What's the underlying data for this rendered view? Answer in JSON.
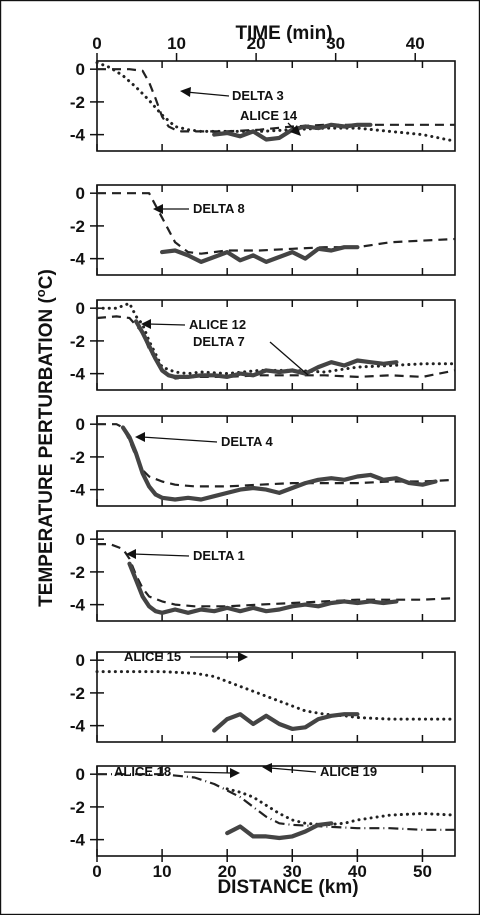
{
  "chart_data": {
    "type": "line",
    "top_axis": {
      "label": "TIME (min)",
      "ticks": [
        0,
        10,
        20,
        30,
        40
      ],
      "range": [
        0,
        45
      ]
    },
    "bottom_axis": {
      "label": "DISTANCE (km)",
      "ticks": [
        0,
        10,
        20,
        30,
        40,
        50
      ],
      "range": [
        0,
        55
      ]
    },
    "ylabel": "TEMPERATURE PERTURBATION (°C)",
    "ylabel_parts": {
      "before": "TEMPERATURE PERTURBATION (",
      "sup": "o",
      "after": "C)"
    },
    "ylim": [
      -5,
      0.5
    ],
    "yticks": [
      0,
      -2,
      -4
    ],
    "ytick_labels": [
      "0",
      "-2",
      "-4"
    ],
    "panels": [
      {
        "series": [
          {
            "name": "DELTA 3",
            "style": "dashed",
            "x": [
              0,
              5,
              7,
              8,
              9,
              10,
              11,
              12,
              13,
              15,
              20,
              25,
              30,
              35,
              40,
              45,
              50,
              55
            ],
            "y": [
              0,
              0,
              -0.1,
              -0.8,
              -1.8,
              -2.9,
              -3.5,
              -3.7,
              -3.8,
              -3.8,
              -3.8,
              -3.7,
              -3.5,
              -3.4,
              -3.4,
              -3.4,
              -3.4,
              -3.4
            ]
          },
          {
            "name": "",
            "style": "dotted",
            "x": [
              0,
              2,
              4,
              6,
              8,
              10,
              12,
              14,
              16,
              20,
              25,
              30,
              35,
              40,
              45,
              50,
              55
            ],
            "y": [
              0.4,
              0.1,
              -0.4,
              -1.1,
              -1.9,
              -2.8,
              -3.5,
              -3.7,
              -3.8,
              -3.8,
              -3.8,
              -3.7,
              -3.6,
              -3.6,
              -3.8,
              -4.0,
              -4.4
            ]
          },
          {
            "name": "ALICE 14",
            "style": "solid",
            "x": [
              18,
              20,
              22,
              24,
              26,
              28,
              30,
              32,
              34,
              36,
              38,
              40,
              42
            ],
            "y": [
              -4.0,
              -3.9,
              -4.1,
              -3.8,
              -4.3,
              -4.2,
              -3.7,
              -3.5,
              -3.6,
              -3.4,
              -3.5,
              -3.4,
              -3.4
            ]
          }
        ],
        "labels": [
          "DELTA 3",
          "ALICE 14"
        ]
      },
      {
        "series": [
          {
            "name": "DELTA 8",
            "style": "dashed",
            "x": [
              0,
              6,
              8,
              10,
              12,
              14,
              16,
              20,
              25,
              30,
              35,
              40,
              45,
              50,
              55
            ],
            "y": [
              0,
              0,
              0,
              -1.5,
              -3.0,
              -3.6,
              -3.7,
              -3.5,
              -3.5,
              -3.4,
              -3.3,
              -3.3,
              -3.0,
              -2.9,
              -2.8
            ]
          },
          {
            "name": "",
            "style": "solid",
            "x": [
              10,
              12,
              14,
              16,
              18,
              20,
              22,
              24,
              26,
              28,
              30,
              32,
              34,
              36,
              38,
              40
            ],
            "y": [
              -3.6,
              -3.5,
              -3.8,
              -4.2,
              -3.9,
              -3.6,
              -4.1,
              -3.8,
              -4.2,
              -3.9,
              -3.6,
              -4.0,
              -3.4,
              -3.5,
              -3.3,
              -3.3
            ]
          }
        ],
        "labels": [
          "DELTA 8"
        ]
      },
      {
        "series": [
          {
            "name": "",
            "style": "dotted",
            "x": [
              0,
              3,
              5,
              6,
              7,
              8,
              10,
              12,
              14,
              16,
              20,
              25,
              30,
              35,
              40,
              45,
              50,
              55
            ],
            "y": [
              0,
              0,
              0.3,
              -0.5,
              -1.0,
              -2.0,
              -3.6,
              -3.9,
              -4.0,
              -3.9,
              -4.0,
              -3.8,
              -3.8,
              -3.9,
              -3.6,
              -3.5,
              -3.4,
              -3.4
            ]
          },
          {
            "name": "DELTA 7",
            "style": "dashed",
            "x": [
              0,
              3,
              5,
              7,
              8,
              10,
              12,
              15,
              20,
              25,
              30,
              35,
              40,
              45,
              50,
              55
            ],
            "y": [
              -0.6,
              -0.5,
              -0.6,
              -1.5,
              -2.5,
              -3.8,
              -4.3,
              -4.2,
              -4.2,
              -4.1,
              -4.1,
              -4.1,
              -4.2,
              -4.1,
              -4.2,
              -3.8
            ]
          },
          {
            "name": "ALICE 12",
            "style": "solid",
            "x": [
              6,
              7,
              8,
              9,
              10,
              11,
              12,
              14,
              16,
              18,
              20,
              22,
              24,
              26,
              28,
              30,
              32,
              34,
              36,
              38,
              40,
              42,
              44,
              46
            ],
            "y": [
              -0.8,
              -1.5,
              -2.3,
              -3.1,
              -3.8,
              -4.1,
              -4.2,
              -4.2,
              -4.1,
              -4.1,
              -4.2,
              -4.0,
              -4.1,
              -3.8,
              -3.9,
              -3.8,
              -4.0,
              -3.6,
              -3.3,
              -3.5,
              -3.2,
              -3.3,
              -3.4,
              -3.3
            ]
          }
        ],
        "labels": [
          "ALICE 12",
          "DELTA 7"
        ]
      },
      {
        "series": [
          {
            "name": "DELTA 4",
            "style": "dashed",
            "x": [
              0,
              3,
              4,
              5,
              6,
              7,
              8,
              10,
              12,
              15,
              20,
              25,
              30,
              35,
              40,
              45,
              50,
              55
            ],
            "y": [
              0,
              0,
              -0.2,
              -1.0,
              -2.0,
              -2.8,
              -3.2,
              -3.5,
              -3.7,
              -3.8,
              -3.8,
              -3.7,
              -3.6,
              -3.6,
              -3.6,
              -3.5,
              -3.5,
              -3.4
            ]
          },
          {
            "name": "",
            "style": "solid",
            "x": [
              4,
              5,
              6,
              7,
              8,
              9,
              10,
              12,
              14,
              16,
              18,
              20,
              22,
              24,
              26,
              28,
              30,
              32,
              34,
              36,
              38,
              40,
              42,
              44,
              46,
              48,
              50,
              52
            ],
            "y": [
              -0.2,
              -0.8,
              -1.8,
              -3.0,
              -3.8,
              -4.3,
              -4.5,
              -4.6,
              -4.5,
              -4.6,
              -4.4,
              -4.2,
              -4.0,
              -3.9,
              -4.0,
              -4.2,
              -3.9,
              -3.6,
              -3.4,
              -3.3,
              -3.4,
              -3.2,
              -3.1,
              -3.4,
              -3.3,
              -3.6,
              -3.7,
              -3.5
            ]
          }
        ],
        "labels": [
          "DELTA 4"
        ]
      },
      {
        "series": [
          {
            "name": "DELTA 1",
            "style": "dashed",
            "x": [
              0,
              2,
              4,
              5,
              6,
              7,
              8,
              10,
              12,
              15,
              20,
              25,
              30,
              35,
              40,
              45,
              50,
              55
            ],
            "y": [
              -0.3,
              -0.3,
              -0.6,
              -1.2,
              -2.2,
              -3.0,
              -3.5,
              -3.8,
              -4.0,
              -4.1,
              -4.1,
              -4.0,
              -3.9,
              -3.8,
              -3.7,
              -3.7,
              -3.7,
              -3.6
            ]
          },
          {
            "name": "",
            "style": "solid",
            "x": [
              5,
              6,
              7,
              8,
              9,
              10,
              12,
              14,
              16,
              18,
              20,
              22,
              24,
              26,
              28,
              30,
              32,
              34,
              36,
              38,
              40,
              42,
              44,
              46
            ],
            "y": [
              -1.5,
              -2.5,
              -3.5,
              -4.1,
              -4.4,
              -4.5,
              -4.3,
              -4.5,
              -4.3,
              -4.4,
              -4.2,
              -4.4,
              -4.2,
              -4.4,
              -4.3,
              -4.1,
              -4.0,
              -4.1,
              -3.9,
              -3.8,
              -3.9,
              -3.8,
              -3.9,
              -3.8
            ]
          }
        ],
        "labels": [
          "DELTA 1"
        ]
      },
      {
        "series": [
          {
            "name": "ALICE 15",
            "style": "dotted",
            "x": [
              0,
              5,
              10,
              15,
              18,
              20,
              22,
              24,
              26,
              28,
              30,
              32,
              35,
              38,
              40,
              45,
              50,
              55
            ],
            "y": [
              -0.7,
              -0.7,
              -0.7,
              -0.8,
              -1.0,
              -1.3,
              -1.6,
              -1.9,
              -2.2,
              -2.5,
              -2.8,
              -3.1,
              -3.3,
              -3.4,
              -3.5,
              -3.6,
              -3.6,
              -3.6
            ]
          },
          {
            "name": "",
            "style": "solid",
            "x": [
              18,
              20,
              22,
              24,
              26,
              28,
              30,
              32,
              34,
              36,
              38,
              40
            ],
            "y": [
              -4.3,
              -3.6,
              -3.3,
              -3.9,
              -3.4,
              -3.9,
              -4.2,
              -4.1,
              -3.6,
              -3.4,
              -3.3,
              -3.3
            ]
          }
        ],
        "labels": [
          "ALICE 15"
        ]
      },
      {
        "series": [
          {
            "name": "ALICE 18",
            "style": "dash-dot",
            "x": [
              0,
              5,
              10,
              15,
              18,
              20,
              22,
              24,
              26,
              28,
              30,
              35,
              40,
              45,
              50,
              55
            ],
            "y": [
              0,
              0,
              0,
              -0.2,
              -0.6,
              -1.0,
              -1.4,
              -2.0,
              -2.6,
              -3.0,
              -3.1,
              -3.2,
              -3.3,
              -3.3,
              -3.4,
              -3.4
            ]
          },
          {
            "name": "ALICE 19",
            "style": "dotted",
            "x": [
              20,
              22,
              24,
              26,
              28,
              30,
              32,
              35,
              38,
              40,
              45,
              50,
              55
            ],
            "y": [
              -0.9,
              -1.1,
              -1.4,
              -1.9,
              -2.4,
              -2.8,
              -3.0,
              -3.1,
              -3.0,
              -2.8,
              -2.5,
              -2.4,
              -2.5
            ]
          },
          {
            "name": "",
            "style": "solid",
            "x": [
              20,
              22,
              24,
              26,
              28,
              30,
              32,
              34,
              36
            ],
            "y": [
              -3.6,
              -3.2,
              -3.8,
              -3.8,
              -3.9,
              -3.8,
              -3.5,
              -3.1,
              -3.0
            ]
          }
        ],
        "labels": [
          "ALICE 18",
          "ALICE 19"
        ]
      }
    ]
  }
}
